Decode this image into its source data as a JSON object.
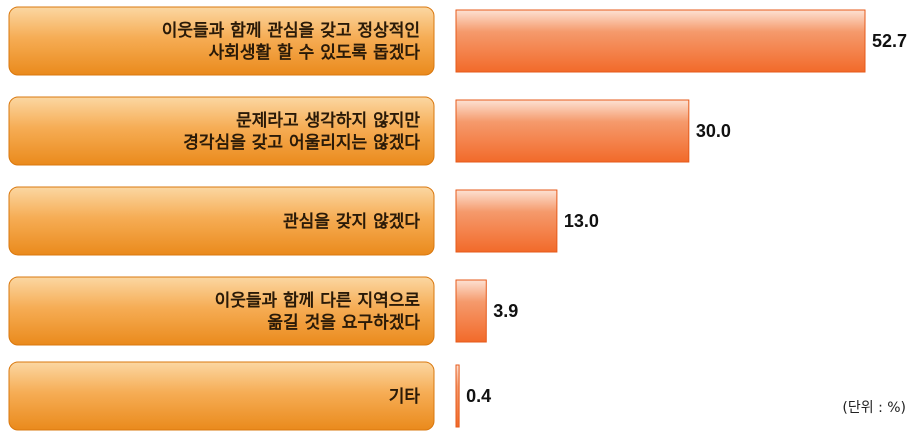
{
  "chart_data": {
    "type": "bar",
    "orientation": "horizontal",
    "categories": [
      [
        "이웃들과 함께 관심을 갖고 정상적인",
        "사회생활 할 수 있도록 돕겠다"
      ],
      [
        "문제라고 생각하지 않지만",
        "경각심을 갖고 어울리지는 않겠다"
      ],
      [
        "관심을 갖지 않겠다"
      ],
      [
        "이웃들과 함께 다른 지역으로",
        "옮길 것을 요구하겠다"
      ],
      [
        "기타"
      ]
    ],
    "values": [
      52.7,
      30.0,
      13.0,
      3.9,
      0.4
    ],
    "value_labels": [
      "52.7",
      "30.0",
      "13.0",
      "3.9",
      "0.4"
    ],
    "unit_note": "(단위 : %)",
    "xlim": [
      0,
      52.7
    ],
    "grid": false,
    "legend": "none",
    "colors": {
      "label_box_light": "#fbd7a2",
      "label_box_mid": "#f6ad55",
      "label_box_dark": "#ea8a1c",
      "label_box_border": "#d9780f",
      "bar_light": "#fde1d3",
      "bar_mid": "#f59a6c",
      "bar_dark": "#f26a2a",
      "bar_border": "#e65a1a"
    }
  }
}
